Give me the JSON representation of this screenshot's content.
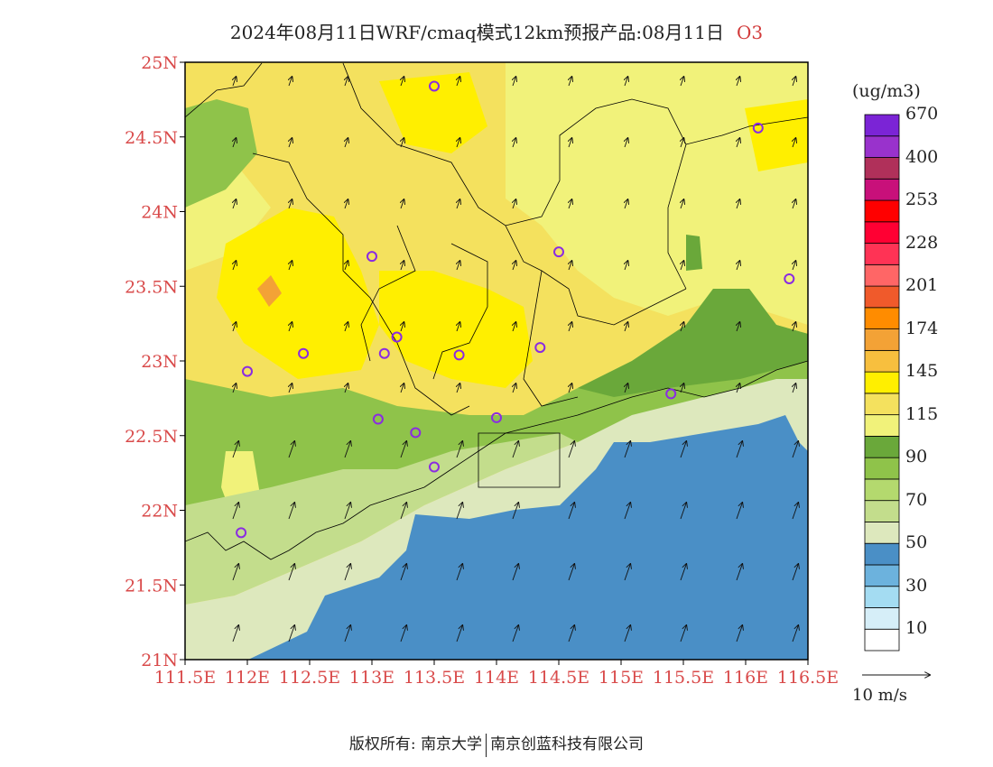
{
  "title": {
    "main": "2024年08月11日WRF/cmaq模式12km预报产品:08月11日",
    "variable": "O3"
  },
  "map": {
    "lat_labels": [
      "25N",
      "24.5N",
      "24N",
      "23.5N",
      "23N",
      "22.5N",
      "22N",
      "21.5N",
      "21N"
    ],
    "lon_labels": [
      "111.5E",
      "112E",
      "112.5E",
      "113E",
      "113.5E",
      "114E",
      "114.5E",
      "115E",
      "115.5E",
      "116E",
      "116.5E"
    ],
    "stations": [
      {
        "lon": 113.5,
        "lat": 24.84
      },
      {
        "lon": 116.1,
        "lat": 24.56
      },
      {
        "lon": 113.0,
        "lat": 23.7
      },
      {
        "lon": 114.5,
        "lat": 23.73
      },
      {
        "lon": 116.35,
        "lat": 23.55
      },
      {
        "lon": 112.45,
        "lat": 23.05
      },
      {
        "lon": 113.1,
        "lat": 23.05
      },
      {
        "lon": 113.2,
        "lat": 23.16
      },
      {
        "lon": 113.7,
        "lat": 23.04
      },
      {
        "lon": 114.35,
        "lat": 23.09
      },
      {
        "lon": 112.0,
        "lat": 22.93
      },
      {
        "lon": 113.05,
        "lat": 22.61
      },
      {
        "lon": 113.35,
        "lat": 22.52
      },
      {
        "lon": 114.0,
        "lat": 22.62
      },
      {
        "lon": 115.4,
        "lat": 22.78
      },
      {
        "lon": 113.5,
        "lat": 22.29
      },
      {
        "lon": 111.95,
        "lat": 21.85
      }
    ]
  },
  "legend": {
    "unit": "(ug/m3)",
    "colors": [
      "#ffffff",
      "#d6eef8",
      "#a4dcf2",
      "#6cb2dd",
      "#4a8fc6",
      "#dde8bd",
      "#c3dd8c",
      "#b4d96e",
      "#8fc34a",
      "#6aa83a",
      "#f1f27a",
      "#f4e15e",
      "#ffef00",
      "#f7bf3e",
      "#f3a236",
      "#ff8c00",
      "#f05a2b",
      "#ff6666",
      "#ff3355",
      "#ff0033",
      "#ff0000",
      "#c8107a",
      "#b0305a",
      "#9932cc",
      "#7b24d6"
    ],
    "labels": [
      "10",
      "30",
      "50",
      "70",
      "90",
      "115",
      "145",
      "174",
      "201",
      "228",
      "253",
      "400",
      "670"
    ],
    "wind_reference": "10 m/s"
  },
  "footer": {
    "copyright_prefix": "版权所有:",
    "org1": "南京大学",
    "org2": "南京创蓝科技有限公司"
  }
}
